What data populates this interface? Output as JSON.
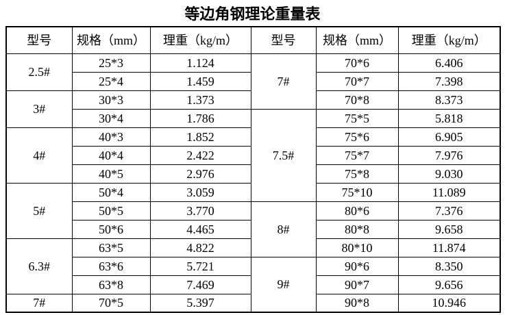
{
  "title": "等边角钢理论重量表",
  "table": {
    "headers": [
      "型号",
      "规格（mm）",
      "理重（kg/m）",
      "型号",
      "规格（mm）",
      "理重（kg/m）"
    ],
    "left_groups": [
      {
        "model": "2.5#",
        "rows": [
          [
            "25*3",
            "1.124"
          ],
          [
            "25*4",
            "1.459"
          ]
        ]
      },
      {
        "model": "3#",
        "rows": [
          [
            "30*3",
            "1.373"
          ],
          [
            "30*4",
            "1.786"
          ]
        ]
      },
      {
        "model": "4#",
        "rows": [
          [
            "40*3",
            "1.852"
          ],
          [
            "40*4",
            "2.422"
          ],
          [
            "40*5",
            "2.976"
          ]
        ]
      },
      {
        "model": "5#",
        "rows": [
          [
            "50*4",
            "3.059"
          ],
          [
            "50*5",
            "3.770"
          ],
          [
            "50*6",
            "4.465"
          ]
        ]
      },
      {
        "model": "6.3#",
        "rows": [
          [
            "63*5",
            "4.822"
          ],
          [
            "63*6",
            "5.721"
          ],
          [
            "63*8",
            "7.469"
          ]
        ]
      },
      {
        "model": "7#",
        "rows": [
          [
            "70*5",
            "5.397"
          ]
        ]
      }
    ],
    "right_groups": [
      {
        "model": "7#",
        "rows": [
          [
            "70*6",
            "6.406"
          ],
          [
            "70*7",
            "7.398"
          ],
          [
            "70*8",
            "8.373"
          ]
        ]
      },
      {
        "model": "7.5#",
        "rows": [
          [
            "75*5",
            "5.818"
          ],
          [
            "75*6",
            "6.905"
          ],
          [
            "75*7",
            "7.976"
          ],
          [
            "75*8",
            "9.030"
          ],
          [
            "75*10",
            "11.089"
          ]
        ]
      },
      {
        "model": "8#",
        "rows": [
          [
            "80*6",
            "7.376"
          ],
          [
            "80*8",
            "9.658"
          ],
          [
            "80*10",
            "11.874"
          ]
        ]
      },
      {
        "model": "9#",
        "rows": [
          [
            "90*6",
            "8.350"
          ],
          [
            "90*7",
            "9.656"
          ],
          [
            "90*8",
            "10.946"
          ]
        ]
      }
    ],
    "colors": {
      "border": "#000000",
      "text": "#000000",
      "background": "#ffffff"
    }
  }
}
